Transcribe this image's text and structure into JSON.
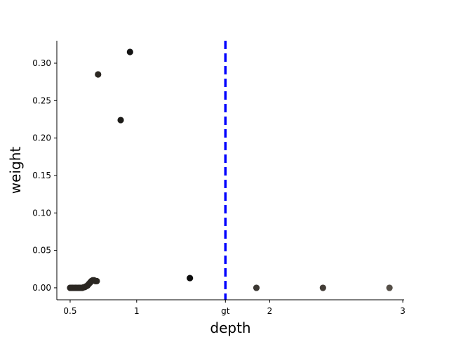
{
  "chart_data": {
    "type": "scatter",
    "xlabel": "depth",
    "ylabel": "weight",
    "xlim": [
      0.4,
      3.01
    ],
    "ylim": [
      -0.016,
      0.33
    ],
    "x_ticks": [
      {
        "value": 0.5,
        "label": "0.5"
      },
      {
        "value": 1.0,
        "label": "1"
      },
      {
        "value": 1.667,
        "label": "gt"
      },
      {
        "value": 2.0,
        "label": "2"
      },
      {
        "value": 3.0,
        "label": "3"
      }
    ],
    "y_ticks": [
      {
        "value": 0.0,
        "label": "0.00"
      },
      {
        "value": 0.05,
        "label": "0.05"
      },
      {
        "value": 0.1,
        "label": "0.10"
      },
      {
        "value": 0.15,
        "label": "0.15"
      },
      {
        "value": 0.2,
        "label": "0.20"
      },
      {
        "value": 0.25,
        "label": "0.25"
      },
      {
        "value": 0.3,
        "label": "0.30"
      }
    ],
    "reference_line": {
      "x": 1.667,
      "color": "#0000ff",
      "style": "dashed"
    },
    "grid": false,
    "points": [
      {
        "x": 0.5,
        "y": 0.0,
        "color": "#2b2722"
      },
      {
        "x": 0.51,
        "y": 0.0,
        "color": "#2b2722"
      },
      {
        "x": 0.52,
        "y": 0.0,
        "color": "#2b2722"
      },
      {
        "x": 0.53,
        "y": 0.0,
        "color": "#2b2722"
      },
      {
        "x": 0.54,
        "y": 0.0,
        "color": "#2b2722"
      },
      {
        "x": 0.55,
        "y": 0.0,
        "color": "#2b2722"
      },
      {
        "x": 0.56,
        "y": 0.0,
        "color": "#2b2722"
      },
      {
        "x": 0.57,
        "y": 0.0,
        "color": "#2b2722"
      },
      {
        "x": 0.58,
        "y": 0.0,
        "color": "#2b2722"
      },
      {
        "x": 0.59,
        "y": 0.0,
        "color": "#2b2722"
      },
      {
        "x": 0.6,
        "y": 0.0005,
        "color": "#2b2722"
      },
      {
        "x": 0.61,
        "y": 0.001,
        "color": "#2b2722"
      },
      {
        "x": 0.62,
        "y": 0.002,
        "color": "#2b2722"
      },
      {
        "x": 0.63,
        "y": 0.003,
        "color": "#2b2722"
      },
      {
        "x": 0.64,
        "y": 0.005,
        "color": "#2b2722"
      },
      {
        "x": 0.65,
        "y": 0.007,
        "color": "#2b2722"
      },
      {
        "x": 0.66,
        "y": 0.009,
        "color": "#2b2722"
      },
      {
        "x": 0.67,
        "y": 0.01,
        "color": "#2b2722"
      },
      {
        "x": 0.68,
        "y": 0.01,
        "color": "#2b2722"
      },
      {
        "x": 0.69,
        "y": 0.009,
        "color": "#2b2722"
      },
      {
        "x": 0.7,
        "y": 0.009,
        "color": "#2b2722"
      },
      {
        "x": 0.71,
        "y": 0.285,
        "color": "#2b2722"
      },
      {
        "x": 0.88,
        "y": 0.224,
        "color": "#1c1b18"
      },
      {
        "x": 0.95,
        "y": 0.315,
        "color": "#141414"
      },
      {
        "x": 1.4,
        "y": 0.013,
        "color": "#0d0d0d"
      },
      {
        "x": 1.9,
        "y": 0.0,
        "color": "#3c3833"
      },
      {
        "x": 2.4,
        "y": 0.0,
        "color": "#433d37"
      },
      {
        "x": 2.9,
        "y": 0.0,
        "color": "#554f48"
      }
    ]
  }
}
